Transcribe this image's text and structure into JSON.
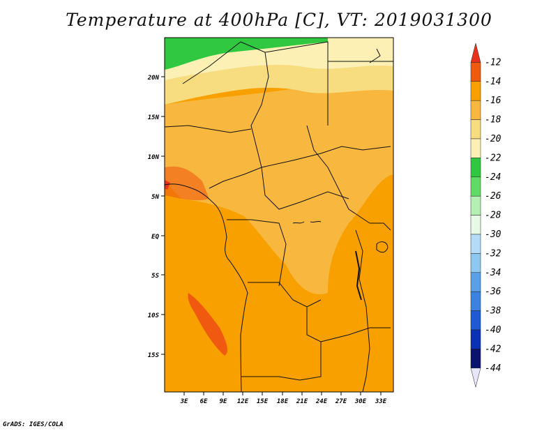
{
  "title": "Temperature at 400hPa [C], VT: 2019031300",
  "credit": "GrADS: IGES/COLA",
  "lat_ticks": [
    "20N",
    "15N",
    "10N",
    "5N",
    "EQ",
    "5S",
    "10S",
    "15S"
  ],
  "lon_ticks": [
    "3E",
    "6E",
    "9E",
    "12E",
    "15E",
    "18E",
    "21E",
    "24E",
    "27E",
    "30E",
    "33E"
  ],
  "colorbar": {
    "labels": [
      "-12",
      "-14",
      "-16",
      "-18",
      "-20",
      "-22",
      "-24",
      "-26",
      "-28",
      "-30",
      "-32",
      "-34",
      "-36",
      "-38",
      "-40",
      "-42",
      "-44"
    ],
    "colors": [
      "#e8321e",
      "#f05a10",
      "#f8a000",
      "#f8b840",
      "#f8dc80",
      "#fcf0b4",
      "#30c840",
      "#60dc64",
      "#b4f0b4",
      "#e6fae6",
      "#b4dcf8",
      "#8cc8f0",
      "#5aa0e8",
      "#3c82e0",
      "#1e5ad2",
      "#0a32b4",
      "#0a146e",
      "#e6e6f8"
    ]
  },
  "colors": {
    "deep": "#f05a10",
    "mid": "#f8a000",
    "light": "#f8b840",
    "pale": "#f8dc80",
    "cream": "#fcf0b4",
    "green": "#30c840"
  }
}
